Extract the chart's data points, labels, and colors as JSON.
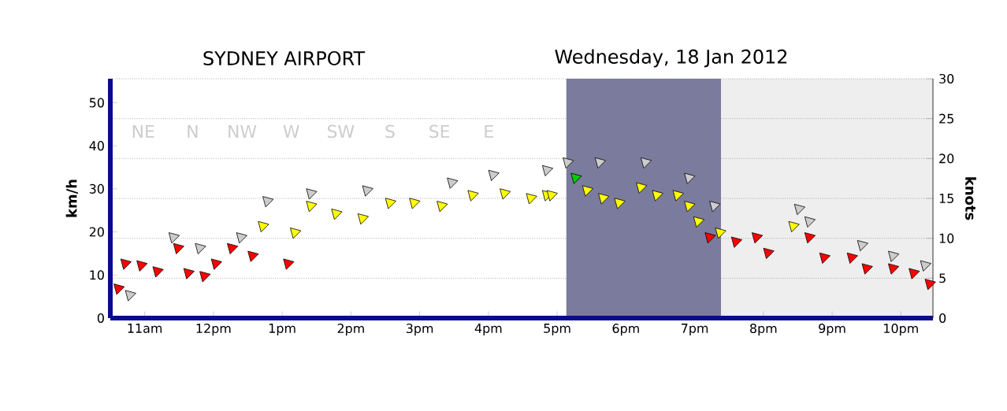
{
  "chart_data": {
    "type": "scatter",
    "title": "SYDNEY AIRPORT",
    "subtitle": "Wednesday, 18 Jan 2012",
    "ylabel": "km/h",
    "y2label": "knots",
    "annotations": [
      "NE",
      "N",
      "NW",
      "W",
      "SW",
      "S",
      "SE",
      "E"
    ],
    "xlim": [
      "2012-01-18T10:30",
      "2012-01-18T22:28"
    ],
    "ylim": [
      0,
      55.56
    ],
    "y2lim": [
      0,
      30
    ],
    "xticks": [
      {
        "value": "2012-01-18T11:00",
        "label": "11am"
      },
      {
        "value": "2012-01-18T12:00",
        "label": "12pm"
      },
      {
        "value": "2012-01-18T13:00",
        "label": "1pm"
      },
      {
        "value": "2012-01-18T14:00",
        "label": "2pm"
      },
      {
        "value": "2012-01-18T15:00",
        "label": "3pm"
      },
      {
        "value": "2012-01-18T16:00",
        "label": "4pm"
      },
      {
        "value": "2012-01-18T17:00",
        "label": "5pm"
      },
      {
        "value": "2012-01-18T18:00",
        "label": "6pm"
      },
      {
        "value": "2012-01-18T19:00",
        "label": "7pm"
      },
      {
        "value": "2012-01-18T20:00",
        "label": "8pm"
      },
      {
        "value": "2012-01-18T21:00",
        "label": "9pm"
      },
      {
        "value": "2012-01-18T22:00",
        "label": "10pm"
      }
    ],
    "yticks": [
      0,
      10,
      20,
      30,
      40,
      50
    ],
    "y2ticks": [
      0,
      5,
      10,
      15,
      20,
      25,
      30
    ],
    "grid": "y",
    "marker": "triangle",
    "bands": [
      {
        "axis": "x",
        "from": "2012-01-18T17:08",
        "to": "2012-01-18T19:23",
        "color": "#7b7b9e"
      },
      {
        "axis": "x",
        "from": "2012-01-18T19:23",
        "to": "2012-01-18T22:28",
        "color": "#eeeeee"
      }
    ],
    "series": [
      {
        "color": "#cccccc",
        "x": [
          "2012-01-18T10:47",
          "2012-01-18T11:25",
          "2012-01-18T11:48",
          "2012-01-18T12:24",
          "2012-01-18T12:47",
          "2012-01-18T13:25",
          "2012-01-18T14:14",
          "2012-01-18T15:28",
          "2012-01-18T16:04",
          "2012-01-18T16:51",
          "2012-01-18T17:09",
          "2012-01-18T17:37",
          "2012-01-18T18:17",
          "2012-01-18T18:55",
          "2012-01-18T19:17",
          "2012-01-18T20:31",
          "2012-01-18T20:40",
          "2012-01-18T21:26",
          "2012-01-18T21:53",
          "2012-01-18T22:21"
        ],
        "values": [
          5.4,
          18.8,
          16.3,
          18.8,
          27.2,
          29.0,
          29.7,
          31.5,
          33.3,
          34.4,
          36.2,
          36.2,
          36.2,
          32.6,
          26.1,
          25.4,
          22.5,
          17.0,
          14.5,
          12.3
        ]
      },
      {
        "color": "#ff0000",
        "x": [
          "2012-01-18T10:37",
          "2012-01-18T10:43",
          "2012-01-18T10:57",
          "2012-01-18T11:11",
          "2012-01-18T11:29",
          "2012-01-18T11:38",
          "2012-01-18T11:52",
          "2012-01-18T12:02",
          "2012-01-18T12:16",
          "2012-01-18T12:34",
          "2012-01-18T13:05",
          "2012-01-18T19:13",
          "2012-01-18T19:36",
          "2012-01-18T19:54",
          "2012-01-18T20:04",
          "2012-01-18T20:40",
          "2012-01-18T20:53",
          "2012-01-18T21:17",
          "2012-01-18T21:30",
          "2012-01-18T21:53",
          "2012-01-18T22:11",
          "2012-01-18T22:25"
        ],
        "values": [
          6.9,
          12.7,
          12.3,
          10.9,
          16.3,
          10.5,
          9.8,
          12.7,
          16.3,
          14.5,
          12.7,
          18.8,
          17.8,
          18.8,
          15.2,
          18.8,
          14.1,
          14.1,
          11.6,
          11.6,
          10.5,
          8.0
        ]
      },
      {
        "color": "#ffff00",
        "x": [
          "2012-01-18T12:43",
          "2012-01-18T13:11",
          "2012-01-18T13:25",
          "2012-01-18T13:47",
          "2012-01-18T14:10",
          "2012-01-18T14:34",
          "2012-01-18T14:55",
          "2012-01-18T15:19",
          "2012-01-18T15:46",
          "2012-01-18T16:14",
          "2012-01-18T16:37",
          "2012-01-18T16:51",
          "2012-01-18T16:55",
          "2012-01-18T17:26",
          "2012-01-18T17:40",
          "2012-01-18T17:54",
          "2012-01-18T18:13",
          "2012-01-18T18:27",
          "2012-01-18T18:45",
          "2012-01-18T18:55",
          "2012-01-18T19:03",
          "2012-01-18T19:22",
          "2012-01-18T20:26"
        ],
        "values": [
          21.4,
          19.9,
          26.1,
          24.3,
          23.2,
          26.8,
          26.8,
          26.1,
          28.6,
          29.0,
          27.9,
          28.6,
          28.6,
          29.7,
          27.9,
          26.8,
          30.4,
          28.6,
          28.6,
          26.1,
          22.5,
          19.9,
          21.4
        ]
      },
      {
        "color": "#00cc00",
        "x": [
          "2012-01-18T17:16"
        ],
        "values": [
          32.6
        ]
      }
    ]
  }
}
